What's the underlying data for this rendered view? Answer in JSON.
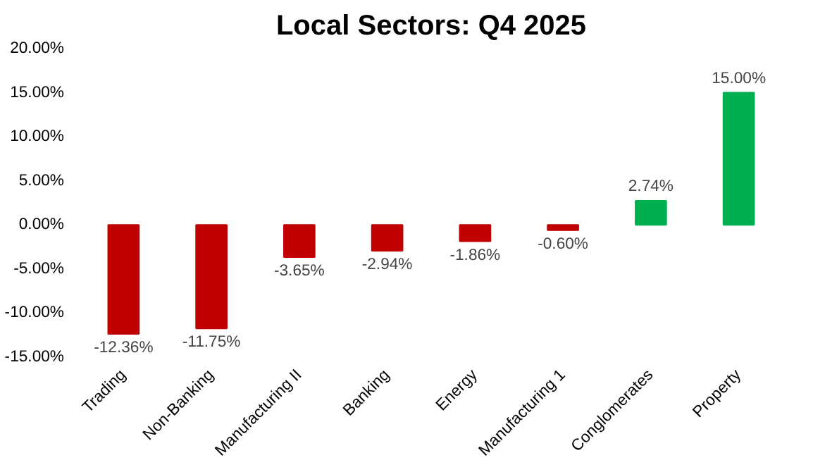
{
  "chart_data": {
    "type": "bar",
    "title": "Local Sectors: Q4 2025",
    "categories": [
      "Trading",
      "Non-Banking",
      "Manufacturing II",
      "Banking",
      "Energy",
      "Manufacturing 1",
      "Conglomerates",
      "Property"
    ],
    "values": [
      -12.36,
      -11.75,
      -3.65,
      -2.94,
      -1.86,
      -0.6,
      2.74,
      15.0
    ],
    "colors": [
      "#c00000",
      "#c00000",
      "#c00000",
      "#c00000",
      "#c00000",
      "#c00000",
      "#00b050",
      "#00b050"
    ],
    "value_labels": [
      "-12.36%",
      "-11.75%",
      "-3.65%",
      "-2.94%",
      "-1.86%",
      "-0.60%",
      "2.74%",
      "15.00%"
    ],
    "ylim": [
      -15,
      20
    ],
    "yticks": [
      {
        "value": -15,
        "label": "-15.00%"
      },
      {
        "value": -10,
        "label": "-10.00%"
      },
      {
        "value": -5,
        "label": "-5.00%"
      },
      {
        "value": 0,
        "label": "0.00%"
      },
      {
        "value": 5,
        "label": "5.00%"
      },
      {
        "value": 10,
        "label": "10.00%"
      },
      {
        "value": 15,
        "label": "15.00%"
      },
      {
        "value": 20,
        "label": "20.00%"
      }
    ],
    "grid": false
  }
}
